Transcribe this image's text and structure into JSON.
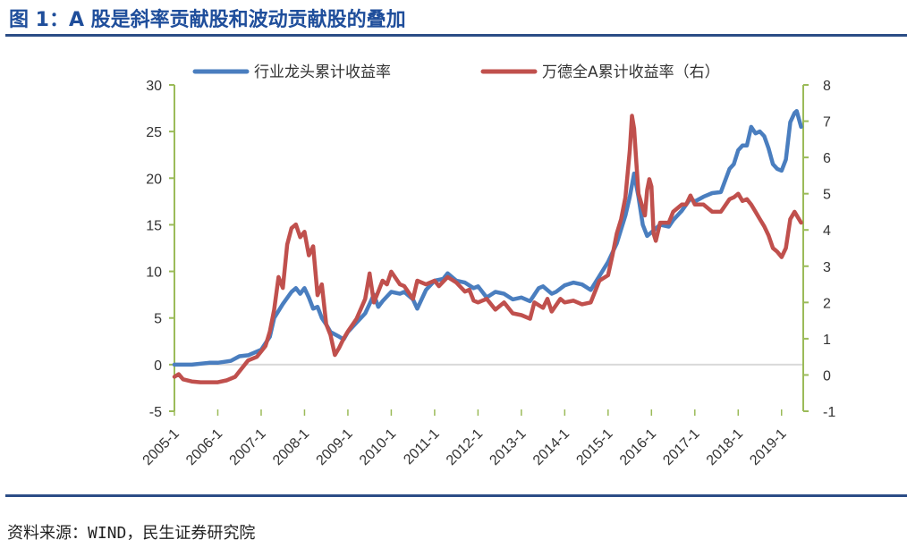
{
  "figure_title": "图 1：A 股是斜率贡献股和波动贡献股的叠加",
  "source_note": "资料来源：WIND，民生证券研究院",
  "colors": {
    "title": "#1f4e9b",
    "rule": "#2b4d86",
    "series_blue": "#4a7ebf",
    "series_red": "#c0504d",
    "axis": "#9bbb59",
    "zero_line": "#d9d9d9"
  },
  "chart_data": {
    "type": "line",
    "title": "",
    "legend_position": "top",
    "grid": false,
    "x_ticks": [
      "2005-1",
      "2006-1",
      "2007-1",
      "2008-1",
      "2009-1",
      "2010-1",
      "2011-1",
      "2012-1",
      "2013-1",
      "2014-1",
      "2015-1",
      "2016-1",
      "2017-1",
      "2018-1",
      "2019-1"
    ],
    "y_left": {
      "ticks": [
        "-5",
        "0",
        "5",
        "10",
        "15",
        "20",
        "25",
        "30"
      ],
      "range": [
        -5,
        30
      ]
    },
    "y_right": {
      "ticks": [
        "-1",
        "0",
        "1",
        "2",
        "3",
        "4",
        "5",
        "6",
        "7",
        "8"
      ],
      "range": [
        -1,
        8
      ]
    },
    "series": [
      {
        "name": "行业龙头累计收益率",
        "axis": "left",
        "color": "#4a7ebf",
        "points": [
          [
            2005.0,
            0
          ],
          [
            2005.4,
            0
          ],
          [
            2005.8,
            0.2
          ],
          [
            2006.0,
            0.2
          ],
          [
            2006.3,
            0.4
          ],
          [
            2006.5,
            0.9
          ],
          [
            2006.7,
            1.0
          ],
          [
            2007.0,
            1.6
          ],
          [
            2007.2,
            3.0
          ],
          [
            2007.3,
            5.0
          ],
          [
            2007.5,
            6.5
          ],
          [
            2007.7,
            7.8
          ],
          [
            2007.8,
            8.2
          ],
          [
            2007.9,
            7.6
          ],
          [
            2008.0,
            8.2
          ],
          [
            2008.1,
            7.2
          ],
          [
            2008.2,
            6.0
          ],
          [
            2008.3,
            6.2
          ],
          [
            2008.4,
            5.0
          ],
          [
            2008.5,
            4.3
          ],
          [
            2008.6,
            3.5
          ],
          [
            2008.8,
            3.0
          ],
          [
            2008.9,
            2.7
          ],
          [
            2009.0,
            3.5
          ],
          [
            2009.2,
            4.5
          ],
          [
            2009.4,
            5.5
          ],
          [
            2009.5,
            6.5
          ],
          [
            2009.6,
            7.5
          ],
          [
            2009.7,
            6.2
          ],
          [
            2009.8,
            6.8
          ],
          [
            2010.0,
            7.8
          ],
          [
            2010.2,
            7.6
          ],
          [
            2010.3,
            7.8
          ],
          [
            2010.5,
            7.0
          ],
          [
            2010.6,
            6.0
          ],
          [
            2010.8,
            8.0
          ],
          [
            2011.0,
            9.0
          ],
          [
            2011.2,
            9.2
          ],
          [
            2011.3,
            9.8
          ],
          [
            2011.5,
            9.0
          ],
          [
            2011.7,
            8.8
          ],
          [
            2011.9,
            8.2
          ],
          [
            2012.0,
            8.4
          ],
          [
            2012.2,
            7.2
          ],
          [
            2012.4,
            7.8
          ],
          [
            2012.6,
            7.6
          ],
          [
            2012.8,
            7.0
          ],
          [
            2013.0,
            7.2
          ],
          [
            2013.2,
            6.8
          ],
          [
            2013.4,
            8.2
          ],
          [
            2013.5,
            8.4
          ],
          [
            2013.7,
            7.6
          ],
          [
            2013.8,
            7.8
          ],
          [
            2014.0,
            8.5
          ],
          [
            2014.2,
            8.8
          ],
          [
            2014.4,
            8.6
          ],
          [
            2014.6,
            8.0
          ],
          [
            2014.8,
            9.5
          ],
          [
            2015.0,
            11.0
          ],
          [
            2015.2,
            13.0
          ],
          [
            2015.4,
            16.0
          ],
          [
            2015.5,
            18.0
          ],
          [
            2015.6,
            20.5
          ],
          [
            2015.7,
            18.0
          ],
          [
            2015.8,
            15.0
          ],
          [
            2015.9,
            13.8
          ],
          [
            2016.0,
            14.2
          ],
          [
            2016.2,
            15.0
          ],
          [
            2016.4,
            14.8
          ],
          [
            2016.5,
            15.5
          ],
          [
            2016.7,
            16.5
          ],
          [
            2016.9,
            17.8
          ],
          [
            2017.0,
            17.5
          ],
          [
            2017.2,
            18.0
          ],
          [
            2017.4,
            18.4
          ],
          [
            2017.6,
            18.5
          ],
          [
            2017.8,
            21.0
          ],
          [
            2017.9,
            21.5
          ],
          [
            2018.0,
            23.0
          ],
          [
            2018.1,
            23.5
          ],
          [
            2018.2,
            23.5
          ],
          [
            2018.3,
            25.5
          ],
          [
            2018.4,
            24.8
          ],
          [
            2018.5,
            25.0
          ],
          [
            2018.6,
            24.5
          ],
          [
            2018.7,
            23.2
          ],
          [
            2018.8,
            21.5
          ],
          [
            2018.9,
            21.0
          ],
          [
            2019.0,
            20.8
          ],
          [
            2019.1,
            22.0
          ],
          [
            2019.2,
            26.0
          ],
          [
            2019.3,
            27.0
          ],
          [
            2019.35,
            27.2
          ],
          [
            2019.45,
            25.5
          ]
        ]
      },
      {
        "name": "万德全A累计收益率（右）",
        "axis": "right",
        "color": "#c0504d",
        "points": [
          [
            2005.0,
            -0.05
          ],
          [
            2005.1,
            0.02
          ],
          [
            2005.2,
            -0.12
          ],
          [
            2005.4,
            -0.18
          ],
          [
            2005.6,
            -0.2
          ],
          [
            2005.8,
            -0.2
          ],
          [
            2006.0,
            -0.2
          ],
          [
            2006.2,
            -0.15
          ],
          [
            2006.4,
            -0.05
          ],
          [
            2006.5,
            0.1
          ],
          [
            2006.7,
            0.4
          ],
          [
            2006.9,
            0.5
          ],
          [
            2007.0,
            0.65
          ],
          [
            2007.1,
            0.8
          ],
          [
            2007.2,
            1.2
          ],
          [
            2007.3,
            1.8
          ],
          [
            2007.4,
            2.7
          ],
          [
            2007.5,
            2.4
          ],
          [
            2007.6,
            3.6
          ],
          [
            2007.7,
            4.05
          ],
          [
            2007.8,
            4.15
          ],
          [
            2007.9,
            3.8
          ],
          [
            2008.0,
            3.95
          ],
          [
            2008.1,
            3.3
          ],
          [
            2008.2,
            3.55
          ],
          [
            2008.3,
            2.2
          ],
          [
            2008.4,
            2.5
          ],
          [
            2008.5,
            1.4
          ],
          [
            2008.6,
            1.1
          ],
          [
            2008.7,
            0.55
          ],
          [
            2008.8,
            0.75
          ],
          [
            2008.9,
            1.0
          ],
          [
            2009.0,
            1.2
          ],
          [
            2009.2,
            1.55
          ],
          [
            2009.4,
            2.1
          ],
          [
            2009.5,
            2.8
          ],
          [
            2009.6,
            2.0
          ],
          [
            2009.7,
            2.3
          ],
          [
            2009.8,
            2.6
          ],
          [
            2009.9,
            2.5
          ],
          [
            2010.0,
            2.85
          ],
          [
            2010.2,
            2.5
          ],
          [
            2010.3,
            2.45
          ],
          [
            2010.5,
            2.1
          ],
          [
            2010.6,
            2.6
          ],
          [
            2010.8,
            2.5
          ],
          [
            2011.0,
            2.6
          ],
          [
            2011.1,
            2.45
          ],
          [
            2011.3,
            2.7
          ],
          [
            2011.5,
            2.55
          ],
          [
            2011.7,
            2.3
          ],
          [
            2011.8,
            2.35
          ],
          [
            2011.9,
            2.05
          ],
          [
            2012.0,
            2.0
          ],
          [
            2012.2,
            2.1
          ],
          [
            2012.4,
            1.8
          ],
          [
            2012.6,
            2.0
          ],
          [
            2012.8,
            1.7
          ],
          [
            2013.0,
            1.65
          ],
          [
            2013.2,
            1.55
          ],
          [
            2013.3,
            2.0
          ],
          [
            2013.5,
            1.85
          ],
          [
            2013.6,
            2.1
          ],
          [
            2013.7,
            1.75
          ],
          [
            2013.9,
            2.1
          ],
          [
            2014.0,
            2.0
          ],
          [
            2014.2,
            2.05
          ],
          [
            2014.4,
            1.95
          ],
          [
            2014.6,
            2.0
          ],
          [
            2014.8,
            2.6
          ],
          [
            2015.0,
            2.75
          ],
          [
            2015.1,
            3.3
          ],
          [
            2015.2,
            3.9
          ],
          [
            2015.3,
            4.3
          ],
          [
            2015.4,
            4.9
          ],
          [
            2015.5,
            6.2
          ],
          [
            2015.55,
            7.15
          ],
          [
            2015.6,
            6.8
          ],
          [
            2015.65,
            5.9
          ],
          [
            2015.7,
            5.0
          ],
          [
            2015.8,
            4.6
          ],
          [
            2015.85,
            4.4
          ],
          [
            2015.9,
            5.1
          ],
          [
            2015.95,
            5.4
          ],
          [
            2016.0,
            5.2
          ],
          [
            2016.05,
            3.9
          ],
          [
            2016.1,
            3.7
          ],
          [
            2016.2,
            4.2
          ],
          [
            2016.4,
            4.2
          ],
          [
            2016.5,
            4.5
          ],
          [
            2016.7,
            4.7
          ],
          [
            2016.8,
            4.7
          ],
          [
            2016.9,
            4.95
          ],
          [
            2017.0,
            4.7
          ],
          [
            2017.2,
            4.7
          ],
          [
            2017.4,
            4.5
          ],
          [
            2017.6,
            4.5
          ],
          [
            2017.8,
            4.85
          ],
          [
            2017.9,
            4.9
          ],
          [
            2018.0,
            5.0
          ],
          [
            2018.1,
            4.8
          ],
          [
            2018.2,
            4.85
          ],
          [
            2018.3,
            4.7
          ],
          [
            2018.4,
            4.5
          ],
          [
            2018.5,
            4.3
          ],
          [
            2018.6,
            4.1
          ],
          [
            2018.7,
            3.85
          ],
          [
            2018.8,
            3.5
          ],
          [
            2018.9,
            3.4
          ],
          [
            2019.0,
            3.25
          ],
          [
            2019.1,
            3.5
          ],
          [
            2019.2,
            4.3
          ],
          [
            2019.3,
            4.5
          ],
          [
            2019.45,
            4.2
          ]
        ]
      }
    ]
  }
}
